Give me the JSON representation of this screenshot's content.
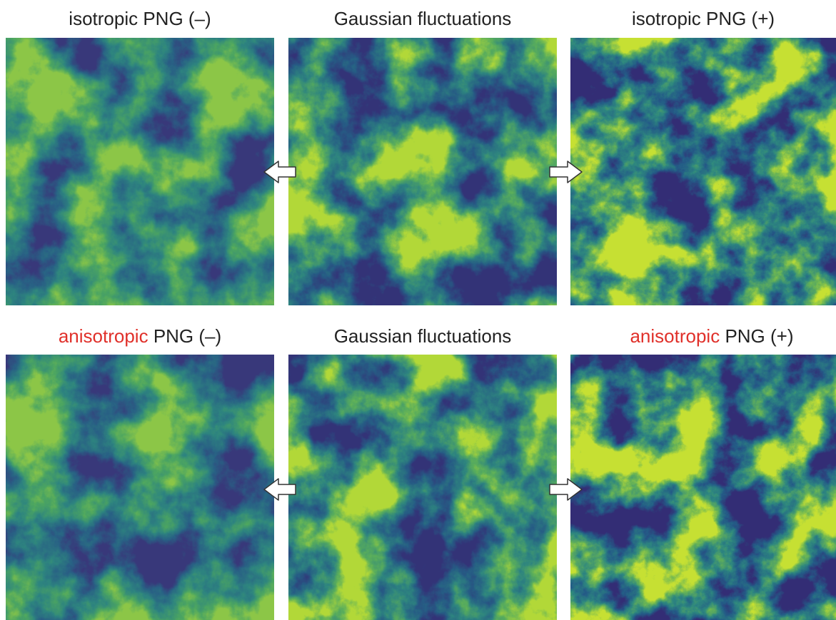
{
  "rows": [
    {
      "panels": [
        {
          "title": "isotropic PNG (–)"
        },
        {
          "title": "Gaussian fluctuations"
        },
        {
          "title": "isotropic PNG (+)"
        }
      ]
    },
    {
      "panels": [
        {
          "title_highlight": "anisotropic",
          "title": "PNG (–)"
        },
        {
          "title": "Gaussian fluctuations"
        },
        {
          "title_highlight": "anisotropic",
          "title": "PNG (+)"
        }
      ]
    }
  ]
}
